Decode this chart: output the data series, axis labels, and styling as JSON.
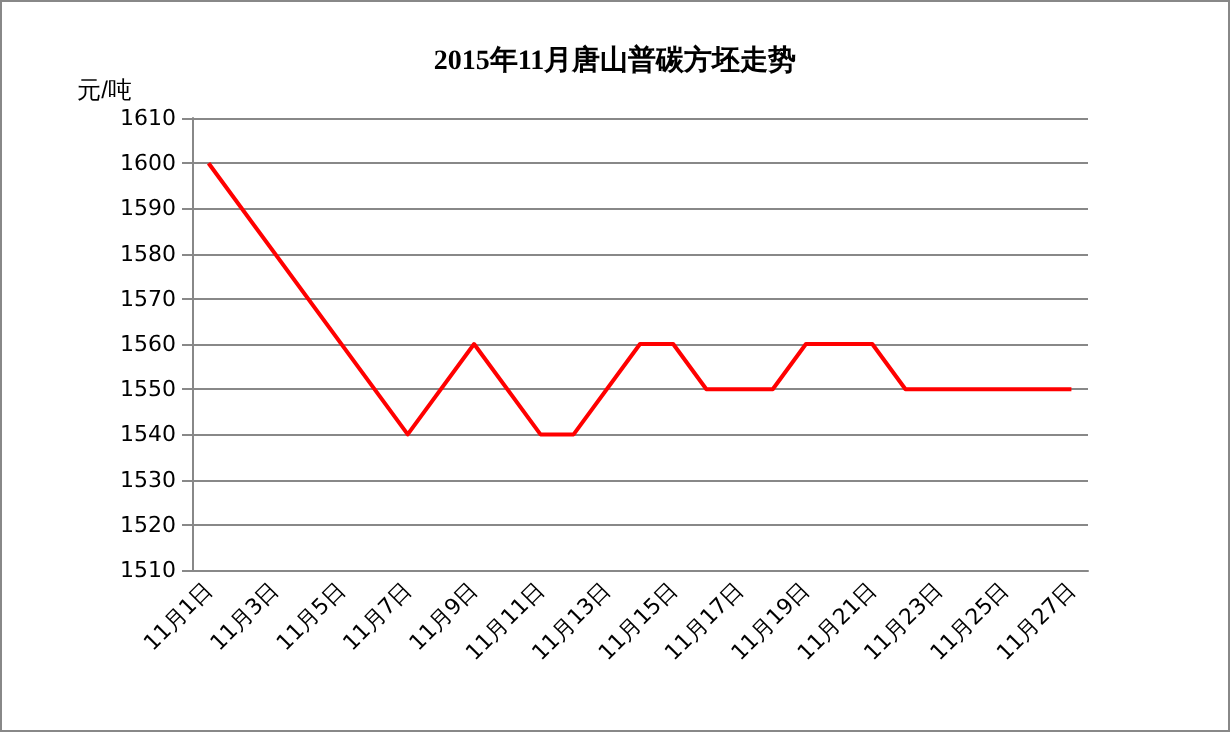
{
  "chart_data": {
    "type": "line",
    "title": "2015年11月唐山普碳方坯走势",
    "ylabel": "元/吨",
    "categories": [
      "11月1日",
      null,
      "11月3日",
      null,
      "11月5日",
      null,
      "11月7日",
      null,
      "11月9日",
      null,
      "11月11日",
      null,
      "11月13日",
      null,
      "11月15日",
      null,
      "11月17日",
      null,
      "11月19日",
      null,
      "11月21日",
      null,
      "11月23日",
      null,
      "11月25日",
      null,
      "11月27日"
    ],
    "series": [
      {
        "color": "#ff0000",
        "values": [
          1600,
          null,
          null,
          null,
          null,
          null,
          1540,
          null,
          1560,
          null,
          1540,
          1540,
          null,
          1560,
          1560,
          1550,
          null,
          1550,
          1560,
          null,
          1560,
          1550,
          null,
          null,
          null,
          null,
          1550
        ]
      }
    ],
    "ylim": [
      1510,
      1610
    ],
    "yticks": [
      1510,
      1520,
      1530,
      1540,
      1550,
      1560,
      1570,
      1580,
      1590,
      1600,
      1610
    ],
    "grid": "y",
    "marker": "none"
  }
}
